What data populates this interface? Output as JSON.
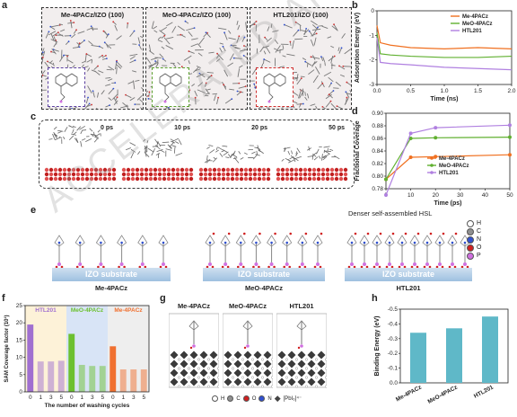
{
  "panel_labels": {
    "a": "a",
    "b": "b",
    "c": "c",
    "d": "d",
    "e": "e",
    "f": "f",
    "g": "g",
    "h": "h"
  },
  "panel_a": {
    "titles": [
      "Me-4PACz/IZO (100)",
      "MeO-4PACz/IZO (100)",
      "HTL201/IZO (100)"
    ],
    "inset_colors": [
      "#5b3fa0",
      "#5aa02c",
      "#d03030"
    ]
  },
  "panel_b": {
    "chart_data": {
      "type": "line",
      "xlabel": "Time (ns)",
      "ylabel": "Adsorption Energy (eV)",
      "xlim": [
        0,
        2.0
      ],
      "ylim": [
        -3,
        0
      ],
      "xticks": [
        "0.0",
        "0.5",
        "1.0",
        "1.5",
        "2.0"
      ],
      "yticks": [
        "0",
        "-1",
        "-2",
        "-3"
      ],
      "series": [
        {
          "name": "Me-4PACz",
          "color": "#f07020",
          "x": [
            0,
            0.05,
            0.2,
            0.5,
            1.0,
            1.5,
            2.0
          ],
          "y": [
            -0.6,
            -1.3,
            -1.4,
            -1.5,
            -1.55,
            -1.5,
            -1.55
          ]
        },
        {
          "name": "MeO-4PACz",
          "color": "#60b030",
          "x": [
            0,
            0.05,
            0.2,
            0.5,
            1.0,
            1.5,
            2.0
          ],
          "y": [
            -0.9,
            -1.75,
            -1.8,
            -1.85,
            -1.9,
            -1.9,
            -1.85
          ]
        },
        {
          "name": "HTL201",
          "color": "#b080e0",
          "x": [
            0,
            0.05,
            0.2,
            0.5,
            1.0,
            1.5,
            2.0
          ],
          "y": [
            -1.1,
            -2.1,
            -2.15,
            -2.2,
            -2.3,
            -2.35,
            -2.4
          ]
        }
      ]
    }
  },
  "panel_c": {
    "times": [
      "0 ps",
      "10 ps",
      "20 ps",
      "50 ps"
    ]
  },
  "panel_d": {
    "chart_data": {
      "type": "line",
      "xlabel": "Time (ps)",
      "ylabel": "Fractional Coverage",
      "xlim": [
        0,
        50
      ],
      "ylim": [
        0.78,
        0.9
      ],
      "xticks": [
        "0",
        "10",
        "20",
        "30",
        "40",
        "50"
      ],
      "yticks": [
        "0.78",
        "0.80",
        "0.82",
        "0.84",
        "0.86",
        "0.88",
        "0.90"
      ],
      "series": [
        {
          "name": "Me-4PACz",
          "color": "#f07020",
          "x": [
            0,
            10,
            20,
            50
          ],
          "y": [
            0.795,
            0.83,
            0.831,
            0.834
          ]
        },
        {
          "name": "MeO-4PACz",
          "color": "#60b030",
          "x": [
            0,
            10,
            20,
            50
          ],
          "y": [
            0.795,
            0.86,
            0.861,
            0.862
          ]
        },
        {
          "name": "HTL201",
          "color": "#b080e0",
          "x": [
            0,
            10,
            20,
            50
          ],
          "y": [
            0.77,
            0.868,
            0.877,
            0.881
          ]
        }
      ]
    }
  },
  "panel_e": {
    "substrate": "IZO substrate",
    "names": [
      "Me-4PACz",
      "MeO-4PACz",
      "HTL201"
    ],
    "note": "Denser self-assembled HSL",
    "legend": [
      {
        "el": "H",
        "color": "#ffffff"
      },
      {
        "el": "C",
        "color": "#909090"
      },
      {
        "el": "N",
        "color": "#3050d0"
      },
      {
        "el": "O",
        "color": "#d02020"
      },
      {
        "el": "P",
        "color": "#d070e0"
      }
    ]
  },
  "panel_f": {
    "chart_data": {
      "type": "bar",
      "ylabel": "SAM Coverage factor (10¹)",
      "xlabel": "The number of washing cycles",
      "ylim": [
        0,
        25
      ],
      "yticks": [
        "0",
        "5",
        "10",
        "15",
        "20",
        "25"
      ],
      "groups": [
        {
          "name": "HTL201",
          "color": "#a070d0",
          "bg": "#fdf2d8",
          "categories": [
            "0",
            "1",
            "3",
            "5"
          ],
          "values": [
            19.5,
            8.8,
            8.8,
            9.0
          ]
        },
        {
          "name": "MeO-4PACz",
          "color": "#6cc030",
          "bg": "#d8e4f6",
          "categories": [
            "0",
            "1",
            "3",
            "5"
          ],
          "values": [
            16.8,
            7.8,
            7.5,
            7.5
          ]
        },
        {
          "name": "Me-4PACz",
          "color": "#f07030",
          "bg": "#eeeeee",
          "categories": [
            "0",
            "1",
            "3",
            "5"
          ],
          "values": [
            13.2,
            6.5,
            6.5,
            6.5
          ]
        }
      ]
    }
  },
  "panel_g": {
    "names": [
      "Me-4PACz",
      "MeO-4PACz",
      "HTL201"
    ],
    "legend": [
      {
        "el": "H",
        "color": "#ffffff"
      },
      {
        "el": "C",
        "color": "#909090"
      },
      {
        "el": "O",
        "color": "#d02020"
      },
      {
        "el": "N",
        "color": "#3050d0"
      }
    ],
    "pb_label": "[PbI₆]⁴⁻"
  },
  "panel_h": {
    "chart_data": {
      "type": "bar",
      "ylabel": "Binding Energy (eV)",
      "categories": [
        "Me-4PACz",
        "MeO-4PACz",
        "HTL201"
      ],
      "values": [
        -0.34,
        -0.37,
        -0.45
      ],
      "ylim": [
        0,
        -0.5
      ],
      "yticks": [
        "0.0",
        "-0.1",
        "-0.2",
        "-0.3",
        "-0.4",
        "-0.5"
      ],
      "color": "#5fb8c8"
    }
  },
  "watermark": "ACCELERATED ARTICLE PREVIEW"
}
